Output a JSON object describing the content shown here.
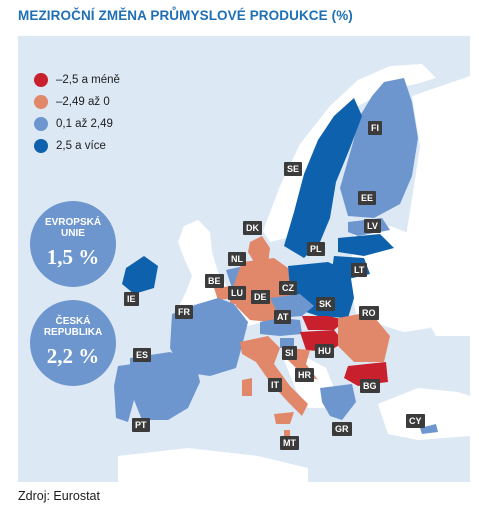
{
  "title": "MEZIROČNÍ ZMĚNA PRŮMYSLOVÉ PRODUKCE (%)",
  "source": "Zdroj: Eurostat",
  "legend": [
    {
      "label": "–2,5 a méně",
      "color": "#c8202c"
    },
    {
      "label": "–2,49 až 0",
      "color": "#e1876a"
    },
    {
      "label": "0,1 až 2,49",
      "color": "#6d96cf"
    },
    {
      "label": "2,5 a více",
      "color": "#0e62ad"
    }
  ],
  "summary": [
    {
      "label_line1": "EVROPSKÁ",
      "label_line2": "UNIE",
      "value": "1,5 %"
    },
    {
      "label_line1": "ČESKÁ",
      "label_line2": "REPUBLIKA",
      "value": "2,2 %"
    }
  ],
  "countries": [
    {
      "code": "FI",
      "category": "0,1 až 2,49"
    },
    {
      "code": "SE",
      "category": "2,5 a více"
    },
    {
      "code": "EE",
      "category": "0,1 až 2,49"
    },
    {
      "code": "LV",
      "category": "2,5 a více"
    },
    {
      "code": "LT",
      "category": "2,5 a více"
    },
    {
      "code": "DK",
      "category": "–2,49 až 0"
    },
    {
      "code": "NL",
      "category": "0,1 až 2,49"
    },
    {
      "code": "BE",
      "category": "–2,49 až 0"
    },
    {
      "code": "LU",
      "category": "–2,49 až 0"
    },
    {
      "code": "DE",
      "category": "–2,49 až 0"
    },
    {
      "code": "PL",
      "category": "2,5 a více"
    },
    {
      "code": "CZ",
      "category": "0,1 až 2,49"
    },
    {
      "code": "IE",
      "category": "2,5 a více"
    },
    {
      "code": "FR",
      "category": "0,1 až 2,49"
    },
    {
      "code": "AT",
      "category": "0,1 až 2,49"
    },
    {
      "code": "SK",
      "category": "–2,5 a méně"
    },
    {
      "code": "HU",
      "category": "–2,5 a méně"
    },
    {
      "code": "RO",
      "category": "–2,49 až 0"
    },
    {
      "code": "SI",
      "category": "0,1 až 2,49"
    },
    {
      "code": "HR",
      "category": "–2,49 až 0"
    },
    {
      "code": "ES",
      "category": "0,1 až 2,49"
    },
    {
      "code": "IT",
      "category": "–2,49 až 0"
    },
    {
      "code": "BG",
      "category": "–2,5 a méně"
    },
    {
      "code": "PT",
      "category": "0,1 až 2,49"
    },
    {
      "code": "GR",
      "category": "0,1 až 2,49"
    },
    {
      "code": "MT",
      "category": "–2,49 až 0"
    },
    {
      "code": "CY",
      "category": "0,1 až 2,49"
    }
  ],
  "colors": {
    "background": "#dde8f5",
    "land_non_eu": "#ffffff",
    "accent": "#1f6fb5",
    "tag": "#3b3b3b"
  }
}
